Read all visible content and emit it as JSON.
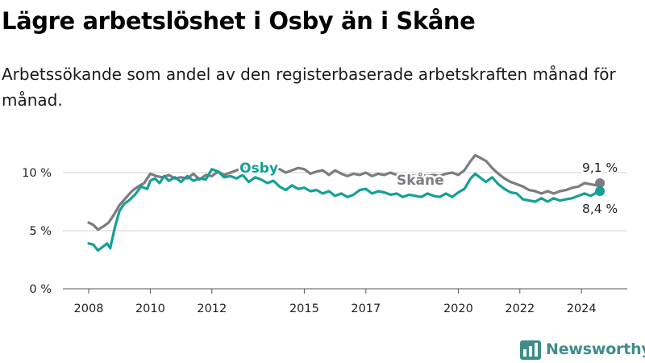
{
  "header": {
    "title": "Lägre arbetslöshet i Osby än i Skåne",
    "subtitle": "Arbetssökande som andel av den registerbaserade arbetskraften månad för månad."
  },
  "branding": {
    "name": "Newsworthy"
  },
  "colors": {
    "osby": "#14a195",
    "skane": "#7d7b80",
    "grid": "#d9d9d9",
    "brand": "#3e8d8a"
  },
  "chart_data": {
    "type": "line",
    "title": "Lägre arbetslöshet i Osby än i Skåne",
    "subtitle": "Arbetssökande som andel av den registerbaserade arbetskraften månad för månad.",
    "xlabel": "",
    "ylabel": "",
    "ylim": [
      0,
      12
    ],
    "xlim": [
      2007.5,
      2025.3
    ],
    "y_ticks": [
      {
        "value": 0,
        "label": "0 %"
      },
      {
        "value": 5,
        "label": "5 %"
      },
      {
        "value": 10,
        "label": "10 %"
      }
    ],
    "x_ticks": [
      {
        "value": 2008,
        "label": "2008"
      },
      {
        "value": 2010,
        "label": "2010"
      },
      {
        "value": 2012,
        "label": "2012"
      },
      {
        "value": 2015,
        "label": "2015"
      },
      {
        "value": 2017,
        "label": "2017"
      },
      {
        "value": 2020,
        "label": "2020"
      },
      {
        "value": 2022,
        "label": "2022"
      },
      {
        "value": 2024,
        "label": "2024"
      }
    ],
    "grid": "horizontal",
    "series": [
      {
        "name": "Skåne",
        "label": "Skåne",
        "end_label": "9,1 %",
        "points": [
          [
            2008.0,
            5.7
          ],
          [
            2008.15,
            5.5
          ],
          [
            2008.3,
            5.1
          ],
          [
            2008.5,
            5.4
          ],
          [
            2008.65,
            5.7
          ],
          [
            2008.8,
            6.3
          ],
          [
            2009.0,
            7.2
          ],
          [
            2009.2,
            7.8
          ],
          [
            2009.4,
            8.4
          ],
          [
            2009.6,
            8.8
          ],
          [
            2009.8,
            9.1
          ],
          [
            2010.0,
            9.9
          ],
          [
            2010.2,
            9.7
          ],
          [
            2010.4,
            9.6
          ],
          [
            2010.6,
            9.8
          ],
          [
            2010.8,
            9.5
          ],
          [
            2011.0,
            9.6
          ],
          [
            2011.2,
            9.5
          ],
          [
            2011.4,
            9.9
          ],
          [
            2011.6,
            9.4
          ],
          [
            2011.8,
            9.8
          ],
          [
            2012.0,
            9.7
          ],
          [
            2012.2,
            10.1
          ],
          [
            2012.4,
            9.8
          ],
          [
            2012.6,
            10.0
          ],
          [
            2012.8,
            10.2
          ],
          [
            2013.0,
            10.4
          ],
          [
            2013.2,
            10.3
          ],
          [
            2013.4,
            10.5
          ],
          [
            2013.6,
            10.3
          ],
          [
            2013.8,
            10.7
          ],
          [
            2014.0,
            10.4
          ],
          [
            2014.2,
            10.3
          ],
          [
            2014.4,
            10.0
          ],
          [
            2014.6,
            10.2
          ],
          [
            2014.8,
            10.4
          ],
          [
            2015.0,
            10.3
          ],
          [
            2015.2,
            9.9
          ],
          [
            2015.4,
            10.1
          ],
          [
            2015.6,
            10.2
          ],
          [
            2015.8,
            9.8
          ],
          [
            2016.0,
            10.2
          ],
          [
            2016.2,
            9.9
          ],
          [
            2016.4,
            9.7
          ],
          [
            2016.6,
            9.9
          ],
          [
            2016.8,
            9.8
          ],
          [
            2017.0,
            10.0
          ],
          [
            2017.2,
            9.7
          ],
          [
            2017.4,
            9.9
          ],
          [
            2017.6,
            9.8
          ],
          [
            2017.8,
            10.0
          ],
          [
            2018.0,
            9.8
          ],
          [
            2018.2,
            9.7
          ],
          [
            2018.4,
            9.8
          ],
          [
            2018.6,
            9.7
          ],
          [
            2018.8,
            9.8
          ],
          [
            2019.0,
            9.7
          ],
          [
            2019.2,
            9.8
          ],
          [
            2019.4,
            9.7
          ],
          [
            2019.6,
            9.9
          ],
          [
            2019.8,
            10.0
          ],
          [
            2020.0,
            9.8
          ],
          [
            2020.2,
            10.2
          ],
          [
            2020.4,
            11.0
          ],
          [
            2020.55,
            11.5
          ],
          [
            2020.7,
            11.3
          ],
          [
            2020.9,
            11.0
          ],
          [
            2021.1,
            10.4
          ],
          [
            2021.3,
            9.9
          ],
          [
            2021.5,
            9.5
          ],
          [
            2021.7,
            9.2
          ],
          [
            2021.9,
            9.0
          ],
          [
            2022.1,
            8.8
          ],
          [
            2022.3,
            8.5
          ],
          [
            2022.5,
            8.4
          ],
          [
            2022.7,
            8.2
          ],
          [
            2022.9,
            8.4
          ],
          [
            2023.1,
            8.2
          ],
          [
            2023.3,
            8.4
          ],
          [
            2023.5,
            8.5
          ],
          [
            2023.7,
            8.7
          ],
          [
            2023.9,
            8.8
          ],
          [
            2024.1,
            9.1
          ],
          [
            2024.3,
            9.0
          ],
          [
            2024.5,
            8.9
          ],
          [
            2024.6,
            9.1
          ]
        ]
      },
      {
        "name": "Osby",
        "label": "Osby",
        "end_label": "8,4 %",
        "points": [
          [
            2008.0,
            3.9
          ],
          [
            2008.15,
            3.8
          ],
          [
            2008.3,
            3.3
          ],
          [
            2008.45,
            3.6
          ],
          [
            2008.6,
            3.9
          ],
          [
            2008.7,
            3.5
          ],
          [
            2008.85,
            5.3
          ],
          [
            2009.0,
            6.7
          ],
          [
            2009.15,
            7.3
          ],
          [
            2009.3,
            7.6
          ],
          [
            2009.5,
            8.1
          ],
          [
            2009.7,
            8.8
          ],
          [
            2009.9,
            8.6
          ],
          [
            2010.0,
            9.3
          ],
          [
            2010.15,
            9.5
          ],
          [
            2010.3,
            9.1
          ],
          [
            2010.45,
            9.7
          ],
          [
            2010.6,
            9.3
          ],
          [
            2010.8,
            9.6
          ],
          [
            2011.0,
            9.2
          ],
          [
            2011.2,
            9.7
          ],
          [
            2011.4,
            9.3
          ],
          [
            2011.6,
            9.5
          ],
          [
            2011.8,
            9.4
          ],
          [
            2012.0,
            10.3
          ],
          [
            2012.2,
            10.1
          ],
          [
            2012.4,
            9.6
          ],
          [
            2012.6,
            9.7
          ],
          [
            2012.8,
            9.5
          ],
          [
            2013.0,
            9.8
          ],
          [
            2013.2,
            9.2
          ],
          [
            2013.4,
            9.6
          ],
          [
            2013.6,
            9.4
          ],
          [
            2013.8,
            9.1
          ],
          [
            2014.0,
            9.3
          ],
          [
            2014.2,
            8.8
          ],
          [
            2014.4,
            8.5
          ],
          [
            2014.6,
            8.9
          ],
          [
            2014.8,
            8.6
          ],
          [
            2015.0,
            8.7
          ],
          [
            2015.2,
            8.4
          ],
          [
            2015.4,
            8.5
          ],
          [
            2015.6,
            8.2
          ],
          [
            2015.8,
            8.4
          ],
          [
            2016.0,
            8.0
          ],
          [
            2016.2,
            8.2
          ],
          [
            2016.4,
            7.9
          ],
          [
            2016.6,
            8.1
          ],
          [
            2016.8,
            8.5
          ],
          [
            2017.0,
            8.6
          ],
          [
            2017.2,
            8.2
          ],
          [
            2017.4,
            8.4
          ],
          [
            2017.6,
            8.3
          ],
          [
            2017.8,
            8.1
          ],
          [
            2018.0,
            8.2
          ],
          [
            2018.2,
            7.9
          ],
          [
            2018.4,
            8.1
          ],
          [
            2018.6,
            8.0
          ],
          [
            2018.8,
            7.9
          ],
          [
            2019.0,
            8.2
          ],
          [
            2019.2,
            8.0
          ],
          [
            2019.4,
            7.9
          ],
          [
            2019.6,
            8.2
          ],
          [
            2019.8,
            7.9
          ],
          [
            2020.0,
            8.3
          ],
          [
            2020.2,
            8.6
          ],
          [
            2020.4,
            9.5
          ],
          [
            2020.55,
            9.9
          ],
          [
            2020.7,
            9.6
          ],
          [
            2020.9,
            9.2
          ],
          [
            2021.1,
            9.6
          ],
          [
            2021.3,
            9.0
          ],
          [
            2021.5,
            8.6
          ],
          [
            2021.7,
            8.3
          ],
          [
            2021.9,
            8.2
          ],
          [
            2022.1,
            7.7
          ],
          [
            2022.3,
            7.6
          ],
          [
            2022.5,
            7.5
          ],
          [
            2022.7,
            7.8
          ],
          [
            2022.9,
            7.5
          ],
          [
            2023.1,
            7.8
          ],
          [
            2023.3,
            7.6
          ],
          [
            2023.5,
            7.7
          ],
          [
            2023.7,
            7.8
          ],
          [
            2023.9,
            8.0
          ],
          [
            2024.1,
            8.2
          ],
          [
            2024.3,
            8.0
          ],
          [
            2024.5,
            8.3
          ],
          [
            2024.6,
            8.4
          ]
        ]
      }
    ]
  }
}
